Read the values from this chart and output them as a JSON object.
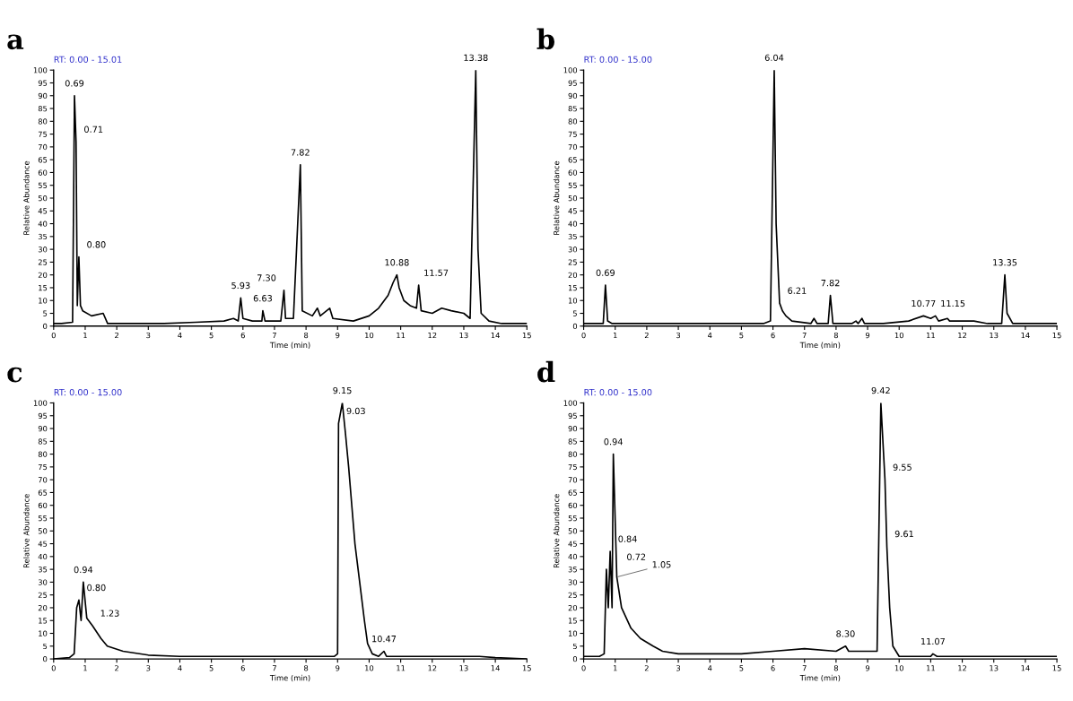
{
  "chart_data": [
    {
      "type": "line",
      "title": "a",
      "subtitle": "RT: 0.00 - 15.01",
      "xlabel": "Time (min)",
      "ylabel": "Relative Abundance",
      "x": [
        0,
        0.25,
        0.6,
        0.66,
        0.71,
        0.75,
        0.8,
        0.85,
        0.92,
        1.2,
        1.57,
        1.71,
        2.5,
        3.5,
        4.5,
        5.4,
        5.7,
        5.85,
        5.93,
        6.0,
        6.3,
        6.6,
        6.63,
        6.7,
        7.2,
        7.3,
        7.35,
        7.6,
        7.82,
        7.88,
        8.2,
        8.36,
        8.45,
        8.75,
        8.85,
        9.5,
        10.0,
        10.3,
        10.6,
        10.76,
        10.88,
        10.95,
        11.1,
        11.3,
        11.5,
        11.57,
        11.65,
        12.0,
        12.3,
        12.6,
        13.0,
        13.2,
        13.38,
        13.45,
        13.55,
        13.8,
        14.2,
        15
      ],
      "series": [
        {
          "color": "#000000",
          "values": [
            1,
            1,
            1.5,
            90,
            72,
            8,
            27,
            8,
            6,
            4,
            5,
            1,
            1,
            1,
            1.5,
            2,
            3,
            2,
            11,
            3,
            2,
            2,
            6,
            2,
            2,
            14,
            3,
            3,
            63,
            6,
            4,
            7,
            4,
            7,
            3,
            2,
            4,
            7,
            12,
            17,
            20,
            15,
            10,
            8,
            7,
            16,
            6,
            5,
            7,
            6,
            5,
            3,
            100,
            30,
            5,
            2,
            1,
            1
          ]
        }
      ],
      "annotations": [
        {
          "text": "0.69",
          "x": 0.66,
          "y": 90
        },
        {
          "text": "0.71",
          "x": 0.71,
          "y": 72
        },
        {
          "text": "0.80",
          "x": 0.8,
          "y": 27
        },
        {
          "text": "5.93",
          "x": 5.93,
          "y": 11
        },
        {
          "text": "6.63",
          "x": 6.63,
          "y": 6
        },
        {
          "text": "7.30",
          "x": 7.3,
          "y": 14
        },
        {
          "text": "7.82",
          "x": 7.82,
          "y": 63
        },
        {
          "text": "10.88",
          "x": 10.88,
          "y": 20
        },
        {
          "text": "11.57",
          "x": 11.57,
          "y": 16
        },
        {
          "text": "13.38",
          "x": 13.38,
          "y": 100
        }
      ],
      "xlim": [
        0,
        15
      ],
      "xticks": [
        0,
        1,
        2,
        3,
        4,
        5,
        6,
        7,
        8,
        9,
        10,
        11,
        12,
        13,
        14,
        15
      ],
      "ylim": [
        0,
        100
      ],
      "yticks": [
        0,
        5,
        10,
        15,
        20,
        25,
        30,
        35,
        40,
        45,
        50,
        55,
        60,
        65,
        70,
        75,
        80,
        85,
        90,
        95,
        100
      ],
      "grid": false,
      "legend": false
    },
    {
      "type": "line",
      "title": "b",
      "subtitle": "RT: 0.00 - 15.00",
      "xlabel": "Time (min)",
      "ylabel": "Relative Abundance",
      "x": [
        0,
        0.5,
        0.62,
        0.69,
        0.76,
        0.9,
        2,
        3,
        4,
        5,
        5.7,
        5.92,
        6.04,
        6.1,
        6.21,
        6.3,
        6.41,
        6.6,
        7.2,
        7.3,
        7.4,
        7.75,
        7.82,
        7.9,
        8.5,
        8.63,
        8.7,
        8.82,
        8.9,
        9.5,
        10.3,
        10.77,
        11.0,
        11.15,
        11.25,
        11.53,
        11.6,
        12.37,
        12.8,
        13.25,
        13.35,
        13.42,
        13.6,
        13.89,
        14.5,
        15
      ],
      "series": [
        {
          "color": "#000000",
          "values": [
            1,
            1,
            1,
            16,
            2,
            1,
            1,
            1,
            1,
            1,
            1,
            2,
            100,
            40,
            9,
            6,
            4,
            2,
            1,
            3,
            1,
            1,
            12,
            1,
            1,
            2,
            1,
            3,
            1,
            1,
            2,
            4,
            3,
            4,
            2,
            3,
            2,
            2,
            1,
            1,
            20,
            5,
            1,
            1,
            1,
            1
          ]
        }
      ],
      "annotations": [
        {
          "text": "0.69",
          "x": 0.69,
          "y": 16
        },
        {
          "text": "6.04",
          "x": 6.04,
          "y": 100
        },
        {
          "text": "6.21",
          "x": 6.21,
          "y": 9
        },
        {
          "text": "7.82",
          "x": 7.82,
          "y": 12
        },
        {
          "text": "10.77",
          "x": 10.77,
          "y": 4
        },
        {
          "text": "11.15",
          "x": 11.15,
          "y": 4
        },
        {
          "text": "13.35",
          "x": 13.35,
          "y": 20
        }
      ],
      "xlim": [
        0,
        15
      ],
      "xticks": [
        0,
        1,
        2,
        3,
        4,
        5,
        6,
        7,
        8,
        9,
        10,
        11,
        12,
        13,
        14,
        15
      ],
      "ylim": [
        0,
        100
      ],
      "yticks": [
        0,
        5,
        10,
        15,
        20,
        25,
        30,
        35,
        40,
        45,
        50,
        55,
        60,
        65,
        70,
        75,
        80,
        85,
        90,
        95,
        100
      ],
      "grid": false,
      "legend": false
    },
    {
      "type": "line",
      "title": "c",
      "subtitle": "RT: 0.00 - 15.00",
      "xlabel": "Time (min)",
      "ylabel": "Relative Abundance",
      "x": [
        0,
        0.5,
        0.65,
        0.73,
        0.8,
        0.87,
        0.94,
        1.05,
        1.23,
        1.5,
        1.7,
        2.2,
        3,
        4,
        5,
        6,
        7,
        8,
        8.6,
        8.9,
        9.0,
        9.03,
        9.15,
        9.25,
        9.35,
        9.45,
        9.55,
        9.65,
        9.75,
        9.85,
        9.95,
        10.1,
        10.3,
        10.47,
        10.55,
        11,
        12,
        13,
        13.5,
        14,
        15
      ],
      "series": [
        {
          "color": "#000000",
          "values": [
            0,
            0.5,
            2,
            20,
            23,
            15,
            30,
            16,
            13,
            8,
            5,
            3,
            1.5,
            1,
            1,
            1,
            1,
            1,
            1,
            1,
            2,
            92,
            100,
            88,
            75,
            60,
            45,
            35,
            25,
            15,
            6,
            2,
            1,
            3,
            1,
            1,
            1,
            1,
            1,
            0.5,
            0
          ]
        }
      ],
      "annotations": [
        {
          "text": "0.80",
          "x": 0.8,
          "y": 23
        },
        {
          "text": "0.94",
          "x": 0.94,
          "y": 30
        },
        {
          "text": "1.23",
          "x": 1.23,
          "y": 13
        },
        {
          "text": "9.03",
          "x": 9.03,
          "y": 92
        },
        {
          "text": "9.15",
          "x": 9.15,
          "y": 100
        },
        {
          "text": "10.47",
          "x": 10.47,
          "y": 3
        }
      ],
      "xlim": [
        0,
        15
      ],
      "xticks": [
        0,
        1,
        2,
        3,
        4,
        5,
        6,
        7,
        8,
        9,
        10,
        11,
        12,
        13,
        14,
        15
      ],
      "ylim": [
        0,
        100
      ],
      "yticks": [
        0,
        5,
        10,
        15,
        20,
        25,
        30,
        35,
        40,
        45,
        50,
        55,
        60,
        65,
        70,
        75,
        80,
        85,
        90,
        95,
        100
      ],
      "grid": false,
      "legend": false
    },
    {
      "type": "line",
      "title": "d",
      "subtitle": "RT: 0.00 - 15.00",
      "xlabel": "Time (min)",
      "ylabel": "Relative Abundance",
      "x": [
        0,
        0.5,
        0.65,
        0.72,
        0.78,
        0.84,
        0.9,
        0.94,
        1.05,
        1.2,
        1.5,
        1.8,
        2.2,
        2.5,
        3,
        4,
        5,
        6,
        7,
        8,
        8.3,
        8.4,
        9.3,
        9.42,
        9.55,
        9.61,
        9.7,
        9.8,
        10,
        11,
        11.07,
        11.2,
        12,
        13,
        14,
        15
      ],
      "series": [
        {
          "color": "#000000",
          "values": [
            1,
            1,
            2,
            35,
            20,
            42,
            20,
            80,
            32,
            20,
            12,
            8,
            5,
            3,
            2,
            2,
            2,
            3,
            4,
            3,
            5,
            3,
            3,
            100,
            70,
            44,
            20,
            5,
            1,
            1,
            2,
            1,
            1,
            1,
            1,
            1
          ]
        }
      ],
      "annotations": [
        {
          "text": "0.72",
          "x": 0.72,
          "y": 35
        },
        {
          "text": "0.84",
          "x": 0.84,
          "y": 42
        },
        {
          "text": "0.94",
          "x": 0.94,
          "y": 80
        },
        {
          "text": "1.05",
          "x": 1.05,
          "y": 32
        },
        {
          "text": "8.30",
          "x": 8.3,
          "y": 5
        },
        {
          "text": "9.42",
          "x": 9.42,
          "y": 100
        },
        {
          "text": "9.55",
          "x": 9.55,
          "y": 70
        },
        {
          "text": "9.61",
          "x": 9.61,
          "y": 44
        },
        {
          "text": "11.07",
          "x": 11.07,
          "y": 2
        }
      ],
      "xlim": [
        0,
        15
      ],
      "xticks": [
        0,
        1,
        2,
        3,
        4,
        5,
        6,
        7,
        8,
        9,
        10,
        11,
        12,
        13,
        14,
        15
      ],
      "ylim": [
        0,
        100
      ],
      "yticks": [
        0,
        5,
        10,
        15,
        20,
        25,
        30,
        35,
        40,
        45,
        50,
        55,
        60,
        65,
        70,
        75,
        80,
        85,
        90,
        95,
        100
      ],
      "grid": false,
      "legend": false
    }
  ]
}
